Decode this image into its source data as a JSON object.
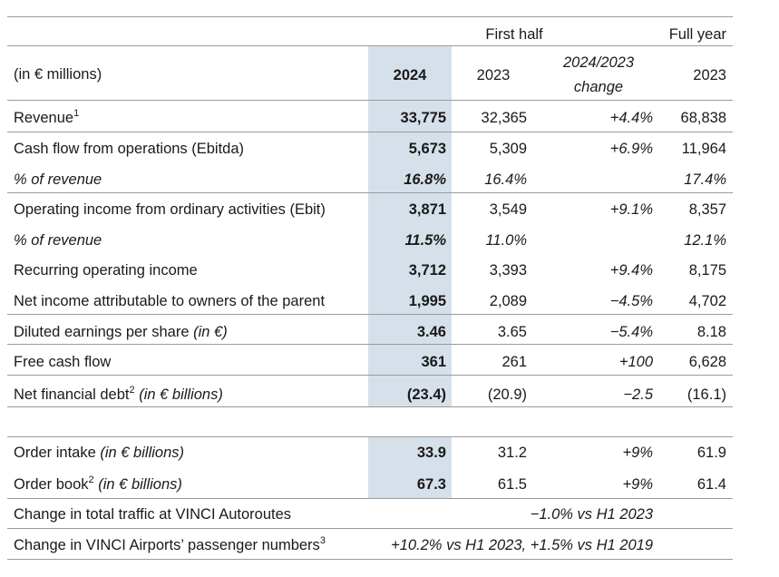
{
  "header": {
    "first_half": "First half",
    "full_year": "Full year",
    "unit_label": "(in € millions)",
    "col_2024": "2024",
    "col_2023": "2023",
    "col_change_line1": "2024/2023",
    "col_change_line2": "change",
    "col_full_2023": "2023"
  },
  "rows": [
    {
      "label": "Revenue",
      "sup": "1",
      "suffix": "",
      "v2024": "33,775",
      "v2023": "32,365",
      "change": "+4.4%",
      "full": "68,838"
    },
    {
      "label": "Cash flow from operations (Ebitda)",
      "sup": "",
      "suffix": "",
      "v2024": "5,673",
      "v2023": "5,309",
      "change": "+6.9%",
      "full": "11,964"
    },
    {
      "label": "% of revenue",
      "sup": "",
      "suffix": "",
      "v2024": "16.8%",
      "v2023": "16.4%",
      "change": "",
      "full": "17.4%"
    },
    {
      "label": "Operating income from ordinary activities (Ebit)",
      "sup": "",
      "suffix": "",
      "v2024": "3,871",
      "v2023": "3,549",
      "change": "+9.1%",
      "full": "8,357"
    },
    {
      "label": "% of revenue",
      "sup": "",
      "suffix": "",
      "v2024": "11.5%",
      "v2023": "11.0%",
      "change": "",
      "full": "12.1%"
    },
    {
      "label": "Recurring operating income",
      "sup": "",
      "suffix": "",
      "v2024": "3,712",
      "v2023": "3,393",
      "change": "+9.4%",
      "full": "8,175"
    },
    {
      "label": "Net income attributable to owners of the parent",
      "sup": "",
      "suffix": "",
      "v2024": "1,995",
      "v2023": "2,089",
      "change": "−4.5%",
      "full": "4,702"
    },
    {
      "label": "Diluted earnings per share ",
      "sup": "",
      "suffix": "(in €)",
      "v2024": "3.46",
      "v2023": "3.65",
      "change": "−5.4%",
      "full": "8.18"
    },
    {
      "label": "Free cash flow",
      "sup": "",
      "suffix": "",
      "v2024": "361",
      "v2023": "261",
      "change": "+100",
      "full": "6,628"
    },
    {
      "label": "Net financial debt",
      "sup": "2",
      "suffix": " (in € billions)",
      "v2024": "(23.4)",
      "v2023": "(20.9)",
      "change": "−2.5",
      "full": "(16.1)"
    },
    {
      "label": "Order intake ",
      "sup": "",
      "suffix": "(in € billions)",
      "v2024": "33.9",
      "v2023": "31.2",
      "change": "+9%",
      "full": "61.9"
    },
    {
      "label": "Order book",
      "sup": "2",
      "suffix": " (in € billions)",
      "v2024": "67.3",
      "v2023": "61.5",
      "change": "+9%",
      "full": "61.4"
    }
  ],
  "traffic": {
    "label": "Change in total traffic at VINCI Autoroutes",
    "value": "−1.0% vs H1 2023"
  },
  "airports": {
    "label": "Change in VINCI Airports’ passenger numbers",
    "sup": "3",
    "value": "+10.2% vs H1 2023, +1.5% vs H1 2019"
  }
}
